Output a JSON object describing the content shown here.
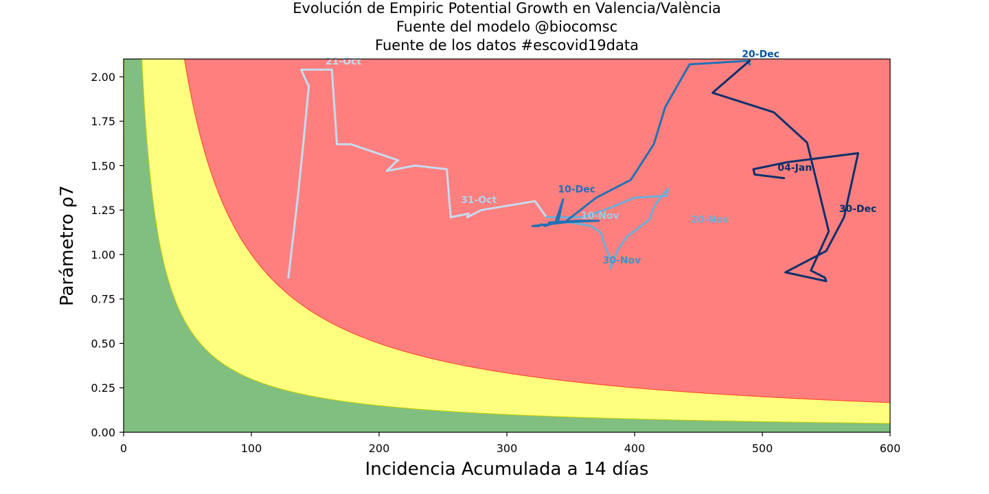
{
  "chart_data": {
    "type": "line",
    "title_lines": [
      "Evolución de Empiric Potential Growth en Valencia/València",
      "Fuente del modelo @biocomsc",
      "Fuente de los datos #escovid19data"
    ],
    "xlabel": "Incidencia Acumulada a 14 días",
    "ylabel": "Parámetro ρ7",
    "xlim": [
      0,
      600
    ],
    "ylim": [
      0,
      2.1
    ],
    "xticks": [
      0,
      100,
      200,
      300,
      400,
      500,
      600
    ],
    "yticks": [
      0.0,
      0.25,
      0.5,
      0.75,
      1.0,
      1.25,
      1.5,
      1.75,
      2.0
    ],
    "ytick_labels": [
      "0.00",
      "0.25",
      "0.50",
      "0.75",
      "1.00",
      "1.25",
      "1.50",
      "1.75",
      "2.00"
    ],
    "background_zones": [
      {
        "name": "green",
        "color": "#80bf80",
        "epg_max": 30
      },
      {
        "name": "yellow",
        "color": "#ffff7f",
        "epg_max": 100
      },
      {
        "name": "red",
        "color": "#ff7f7f"
      }
    ],
    "series": [
      {
        "color": "#c6dbef",
        "points": [
          [
            129,
            0.87
          ],
          [
            136,
            1.3
          ],
          [
            141,
            1.65
          ],
          [
            145,
            1.95
          ],
          [
            144,
            1.96
          ],
          [
            139,
            2.04
          ],
          [
            163,
            2.04
          ],
          [
            167,
            1.62
          ],
          [
            178,
            1.62
          ],
          [
            215,
            1.53
          ],
          [
            213,
            1.52
          ],
          [
            206,
            1.47
          ],
          [
            228,
            1.5
          ],
          [
            253,
            1.48
          ],
          [
            256,
            1.21
          ],
          [
            270,
            1.23
          ],
          [
            269,
            1.21
          ],
          [
            280,
            1.25
          ],
          [
            322,
            1.3
          ],
          [
            323,
            1.29
          ],
          [
            331,
            1.21
          ]
        ]
      },
      {
        "color": "#6baed6",
        "points": [
          [
            331,
            1.21
          ],
          [
            360,
            1.21
          ],
          [
            380,
            1.26
          ],
          [
            400,
            1.32
          ],
          [
            425,
            1.33
          ],
          [
            426,
            1.37
          ],
          [
            418,
            1.3
          ],
          [
            414,
            1.25
          ],
          [
            412,
            1.2
          ],
          [
            405,
            1.16
          ],
          [
            394,
            1.1
          ],
          [
            387,
            1.03
          ],
          [
            381,
            0.92
          ],
          [
            382,
            0.96
          ],
          [
            376,
            1.06
          ],
          [
            374,
            1.12
          ],
          [
            366,
            1.16
          ],
          [
            350,
            1.18
          ],
          [
            333,
            1.18
          ]
        ]
      },
      {
        "color": "#2171b5",
        "points": [
          [
            333,
            1.18
          ],
          [
            355,
            1.19
          ],
          [
            372,
            1.19
          ],
          [
            340,
            1.18
          ],
          [
            344,
            1.31
          ],
          [
            338,
            1.18
          ],
          [
            330,
            1.16
          ],
          [
            327,
            1.17
          ],
          [
            325,
            1.16
          ],
          [
            320,
            1.16
          ],
          [
            345,
            1.18
          ],
          [
            370,
            1.32
          ],
          [
            397,
            1.42
          ],
          [
            415,
            1.62
          ],
          [
            424,
            1.83
          ],
          [
            443,
            2.07
          ],
          [
            489,
            2.09
          ],
          [
            490,
            2.07
          ]
        ]
      },
      {
        "color": "#08306b",
        "points": [
          [
            490,
            2.09
          ],
          [
            461,
            1.91
          ],
          [
            509,
            1.8
          ],
          [
            535,
            1.63
          ],
          [
            552,
            1.13
          ],
          [
            538,
            0.91
          ],
          [
            549,
            0.87
          ],
          [
            550,
            0.85
          ],
          [
            518,
            0.9
          ],
          [
            550,
            1.02
          ],
          [
            564,
            1.21
          ],
          [
            575,
            1.57
          ],
          [
            520,
            1.52
          ],
          [
            493,
            1.48
          ],
          [
            494,
            1.45
          ],
          [
            517,
            1.43
          ]
        ]
      }
    ],
    "annotations": [
      {
        "text": "21-Oct",
        "x": 158,
        "y": 2.07,
        "color": "#c6dbef"
      },
      {
        "text": "31-Oct",
        "x": 264,
        "y": 1.29,
        "color": "#b3d1e8"
      },
      {
        "text": "10-Nov",
        "x": 358,
        "y": 1.2,
        "color": "#9ecae1"
      },
      {
        "text": "20-Nov",
        "x": 444,
        "y": 1.18,
        "color": "#6baed6"
      },
      {
        "text": "30-Nov",
        "x": 375,
        "y": 0.95,
        "color": "#4292c6"
      },
      {
        "text": "10-Dec",
        "x": 340,
        "y": 1.35,
        "color": "#2171b5"
      },
      {
        "text": "20-Dec",
        "x": 484,
        "y": 2.11,
        "color": "#08519c"
      },
      {
        "text": "30-Dec",
        "x": 560,
        "y": 1.24,
        "color": "#08306b"
      },
      {
        "text": "04-Jan",
        "x": 512,
        "y": 1.47,
        "color": "#08306b"
      }
    ]
  }
}
